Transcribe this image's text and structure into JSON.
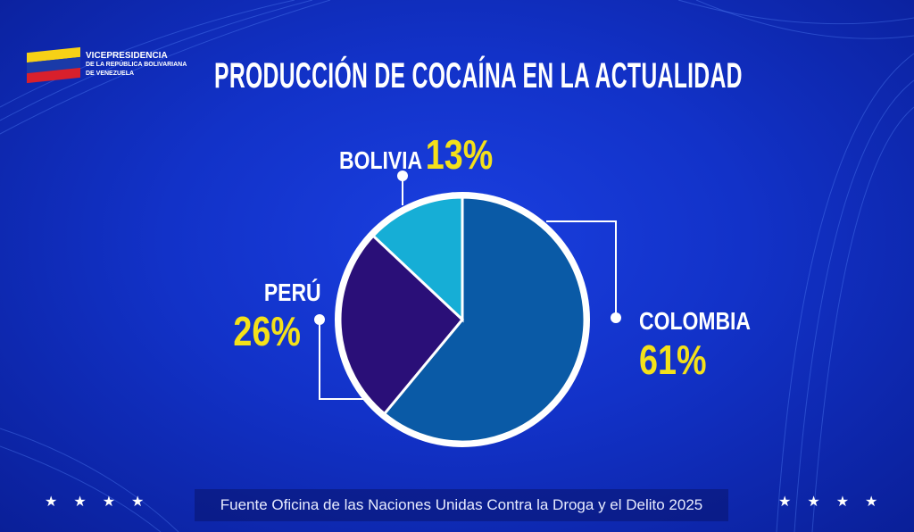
{
  "logo": {
    "line1": "VICEPRESIDENCIA",
    "line2": "DE LA REPÚBLICA BOLIVARIANA",
    "line3": "DE VENEZUELA"
  },
  "colors": {
    "background": "#1232c8",
    "label_value": "#f4e11a",
    "outline": "#ffffff"
  },
  "chart_data": {
    "type": "pie",
    "title": "PRODUCCIÓN DE COCAÍNA EN LA ACTUALIDAD",
    "start": "top, clockwise",
    "slices": [
      {
        "label": "COLOMBIA",
        "value": 61,
        "display": "61%",
        "color": "#0a5aa6"
      },
      {
        "label": "PERÚ",
        "value": 26,
        "display": "26%",
        "color": "#2a0f78"
      },
      {
        "label": "BOLIVIA",
        "value": 13,
        "display": "13%",
        "color": "#16aed6"
      }
    ]
  },
  "source": "Fuente Oficina de las Naciones Unidas Contra la Droga y el Delito 2025",
  "stars": "★★★★"
}
